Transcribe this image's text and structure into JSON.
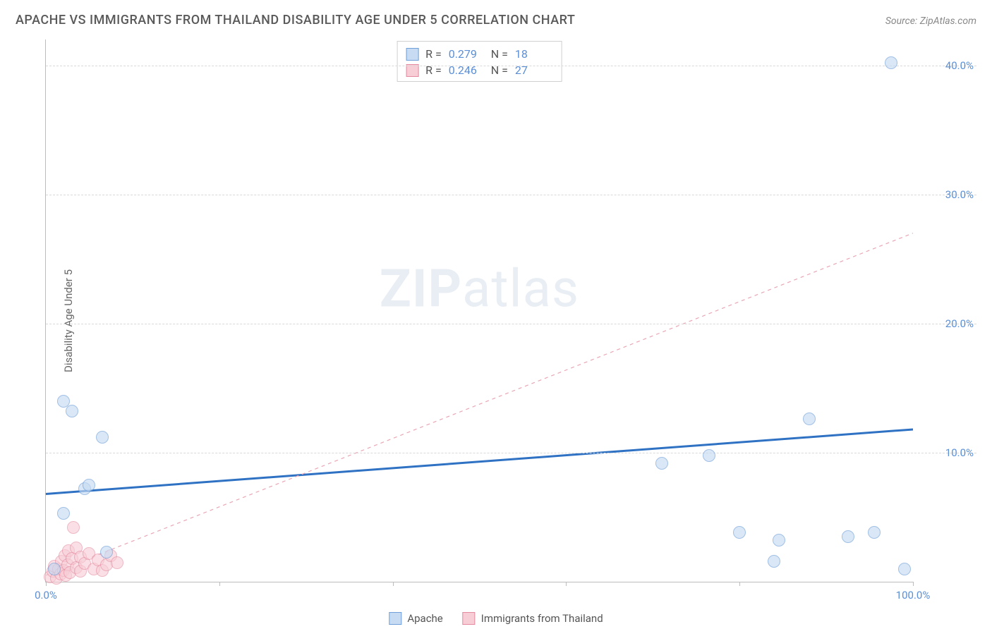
{
  "title": "APACHE VS IMMIGRANTS FROM THAILAND DISABILITY AGE UNDER 5 CORRELATION CHART",
  "source_label": "Source: ",
  "source_name": "ZipAtlas.com",
  "ylabel": "Disability Age Under 5",
  "watermark_bold": "ZIP",
  "watermark_rest": "atlas",
  "chart": {
    "type": "scatter",
    "xlim": [
      0,
      100
    ],
    "ylim": [
      0,
      42
    ],
    "x_ticks": [
      0,
      20,
      40,
      60,
      80,
      100
    ],
    "x_tick_labels_shown": {
      "0": "0.0%",
      "100": "100.0%"
    },
    "y_gridlines": [
      10,
      20,
      30,
      40
    ],
    "y_tick_labels": {
      "10": "10.0%",
      "20": "20.0%",
      "30": "30.0%",
      "40": "40.0%"
    },
    "grid_color": "#d9d9d9",
    "axis_color": "#bcbcbc",
    "background_color": "#ffffff",
    "tick_label_color": "#5b8fd6",
    "point_radius": 9,
    "series": [
      {
        "name": "Apache",
        "fill": "#c7dbf2",
        "stroke": "#6f9fd8",
        "fill_opacity": 0.65,
        "R": "0.279",
        "N": "18",
        "trend": {
          "x1": 0,
          "y1": 6.8,
          "x2": 100,
          "y2": 11.8,
          "stroke": "#2f72c4",
          "width": 3,
          "dash": "none"
        },
        "points": [
          {
            "x": 3.0,
            "y": 13.2
          },
          {
            "x": 2.0,
            "y": 14.0
          },
          {
            "x": 6.5,
            "y": 11.2
          },
          {
            "x": 4.5,
            "y": 7.2
          },
          {
            "x": 5.0,
            "y": 7.5
          },
          {
            "x": 2.0,
            "y": 5.3
          },
          {
            "x": 1.0,
            "y": 1.0
          },
          {
            "x": 7.0,
            "y": 2.3
          },
          {
            "x": 71.0,
            "y": 9.2
          },
          {
            "x": 76.5,
            "y": 9.8
          },
          {
            "x": 80.0,
            "y": 3.8
          },
          {
            "x": 84.5,
            "y": 3.2
          },
          {
            "x": 84.0,
            "y": 1.6
          },
          {
            "x": 88.0,
            "y": 12.6
          },
          {
            "x": 92.5,
            "y": 3.5
          },
          {
            "x": 95.5,
            "y": 3.8
          },
          {
            "x": 97.5,
            "y": 40.2
          },
          {
            "x": 99.0,
            "y": 1.0
          }
        ]
      },
      {
        "name": "Immigrants from Thailand",
        "fill": "#f7cdd6",
        "stroke": "#e48aa0",
        "fill_opacity": 0.6,
        "R": "0.246",
        "N": "27",
        "trend": {
          "x1": 0,
          "y1": 0.5,
          "x2": 100,
          "y2": 27.0,
          "stroke": "#e9a6b5",
          "width": 1.2,
          "dash": "5,5"
        },
        "points": [
          {
            "x": 0.5,
            "y": 0.4
          },
          {
            "x": 0.8,
            "y": 0.8
          },
          {
            "x": 1.0,
            "y": 1.2
          },
          {
            "x": 1.2,
            "y": 0.3
          },
          {
            "x": 1.5,
            "y": 1.0
          },
          {
            "x": 1.7,
            "y": 0.6
          },
          {
            "x": 1.8,
            "y": 1.6
          },
          {
            "x": 2.0,
            "y": 0.9
          },
          {
            "x": 2.2,
            "y": 2.0
          },
          {
            "x": 2.3,
            "y": 0.5
          },
          {
            "x": 2.5,
            "y": 1.3
          },
          {
            "x": 2.6,
            "y": 2.4
          },
          {
            "x": 2.8,
            "y": 0.7
          },
          {
            "x": 3.0,
            "y": 1.8
          },
          {
            "x": 3.2,
            "y": 4.2
          },
          {
            "x": 3.5,
            "y": 1.1
          },
          {
            "x": 3.5,
            "y": 2.6
          },
          {
            "x": 4.0,
            "y": 0.8
          },
          {
            "x": 4.0,
            "y": 1.9
          },
          {
            "x": 4.5,
            "y": 1.4
          },
          {
            "x": 5.0,
            "y": 2.2
          },
          {
            "x": 5.5,
            "y": 1.0
          },
          {
            "x": 6.0,
            "y": 1.7
          },
          {
            "x": 6.5,
            "y": 0.9
          },
          {
            "x": 7.0,
            "y": 1.3
          },
          {
            "x": 7.5,
            "y": 2.0
          },
          {
            "x": 8.2,
            "y": 1.5
          }
        ]
      }
    ]
  },
  "legend_stat_labels": {
    "R": "R =",
    "N": "N ="
  },
  "bottom_legend": [
    "Apache",
    "Immigrants from Thailand"
  ]
}
